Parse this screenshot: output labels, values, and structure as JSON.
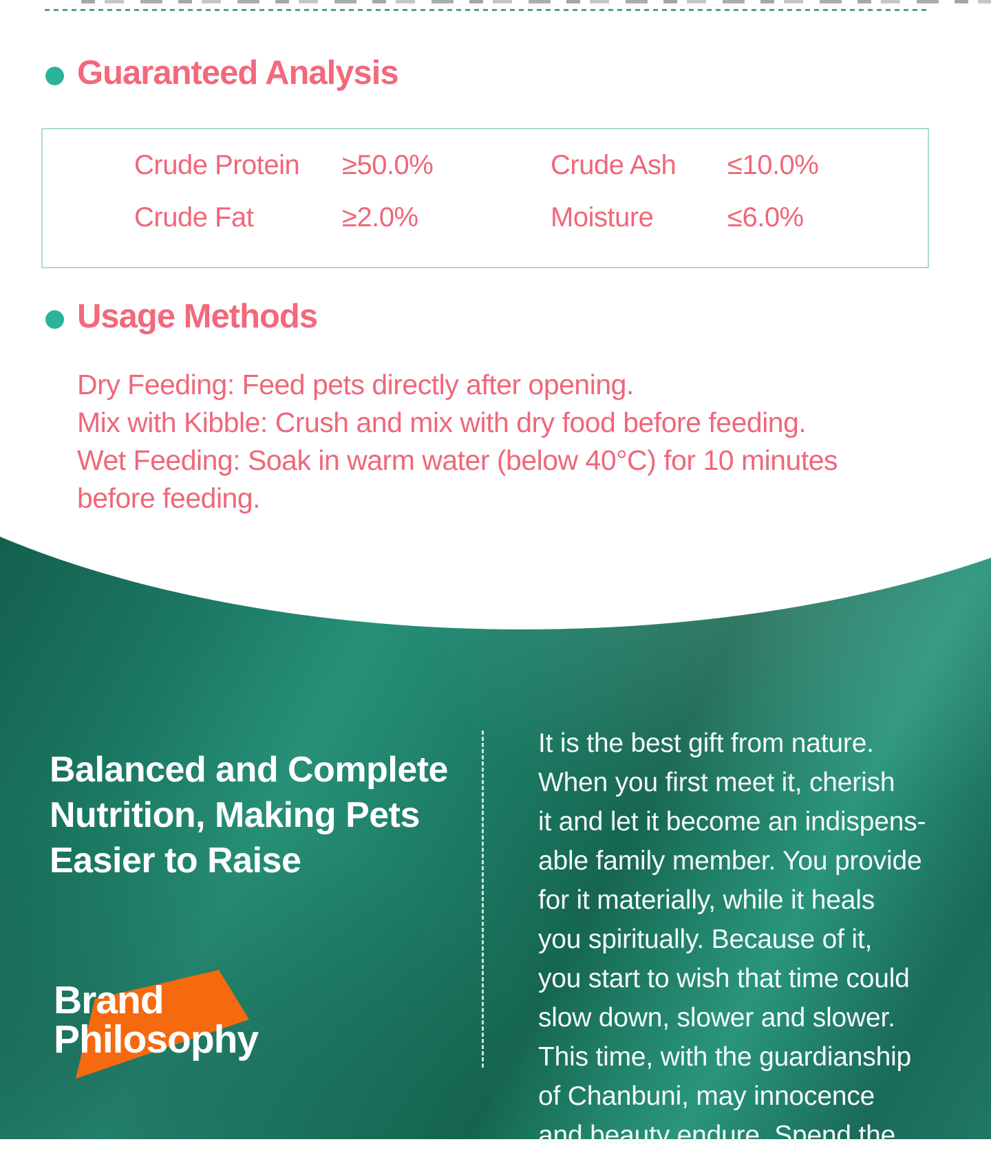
{
  "colors": {
    "pink_text": "#ef6779",
    "teal_dot": "#2cb39c",
    "box_border": "#a9dbd2",
    "dashed_rule": "#4f9f8f",
    "green_base": "#1c7260",
    "orange_badge": "#f5690f",
    "white_text": "#ffffff"
  },
  "guaranteed_analysis": {
    "title": "Guaranteed Analysis",
    "items": [
      {
        "label": "Crude Protein",
        "value": "≥50.0%"
      },
      {
        "label": "Crude Fat",
        "value": "≥2.0%"
      },
      {
        "label": "Crude Ash",
        "value": "≤10.0%"
      },
      {
        "label": "Moisture",
        "value": "≤6.0%"
      }
    ]
  },
  "usage_methods": {
    "title": "Usage Methods",
    "lines": [
      "Dry Feeding: Feed pets directly after opening.",
      "Mix with Kibble: Crush and mix with dry food before feeding.",
      "Wet Feeding: Soak in warm water (below 40°C) for 10 minutes",
      "before feeding."
    ]
  },
  "brand_section": {
    "headline_lines": [
      "Balanced and Complete",
      "Nutrition, Making Pets",
      "Easier to Raise"
    ],
    "badge_lines": [
      "Brand",
      "Philosophy"
    ],
    "paragraph_lines": [
      "It is the best gift from nature.",
      "When you first meet it, cherish",
      "it and let it become an indispens-",
      "able family member. You provide",
      "for it materially, while it heals",
      "you spiritually. Because of it,",
      "you start to wish that time could",
      "slow down, slower and slower.",
      "This time, with the guardianship",
      "of Chanbuni, may innocence",
      "and beauty endure. Spend the"
    ]
  }
}
